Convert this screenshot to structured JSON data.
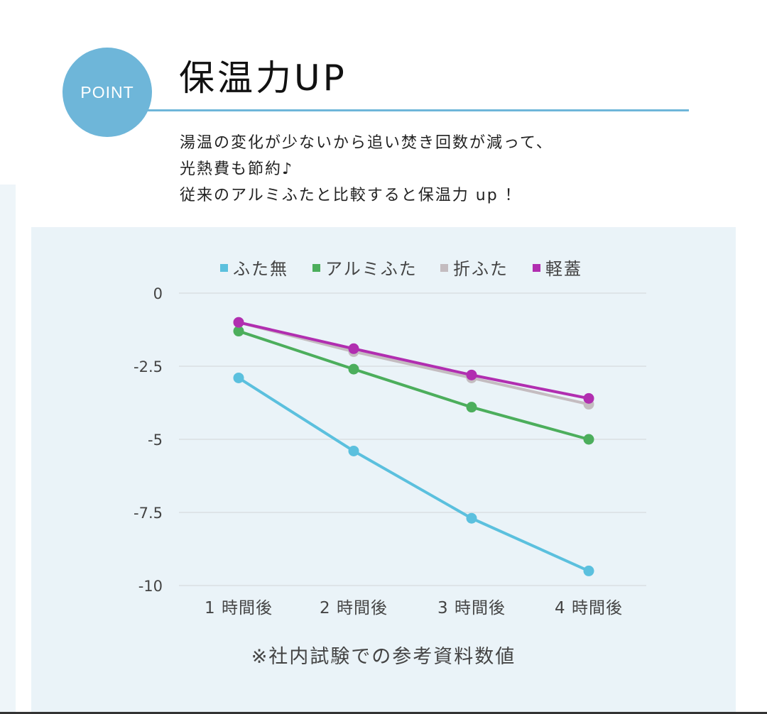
{
  "header": {
    "badge_label": "POINT",
    "title": "保温力UP",
    "description_lines": [
      "湯温の変化が少ないから追い焚き回数が減って、",
      "光熱費も節約♪",
      "従来のアルミふたと比較すると保温力 up ！"
    ]
  },
  "colors": {
    "accent": "#6eb6d9",
    "panel_bg": "#eaf3f8"
  },
  "footnote": "※社内試験での参考資料数値",
  "chart_data": {
    "type": "line",
    "title": "",
    "xlabel": "",
    "ylabel": "",
    "categories": [
      "1 時間後",
      "2 時間後",
      "3 時間後",
      "4 時間後"
    ],
    "ylim": [
      -10,
      0
    ],
    "yticks": [
      0,
      -2.5,
      -5,
      -7.5,
      -10
    ],
    "ytick_labels": [
      "0",
      "-2.5",
      "-5",
      "-7.5",
      "-10"
    ],
    "grid": true,
    "legend_position": "top",
    "series": [
      {
        "name": "ふた無",
        "color": "#5bc0de",
        "values": [
          -2.9,
          -5.4,
          -7.7,
          -9.5
        ]
      },
      {
        "name": "アルミふた",
        "color": "#4cae5c",
        "values": [
          -1.3,
          -2.6,
          -3.9,
          -5.0
        ]
      },
      {
        "name": "折ふた",
        "color": "#c4bcc0",
        "values": [
          -1.0,
          -2.0,
          -2.9,
          -3.8
        ]
      },
      {
        "name": "軽蓋",
        "color": "#b12eb0",
        "values": [
          -1.0,
          -1.9,
          -2.8,
          -3.6
        ]
      }
    ]
  }
}
